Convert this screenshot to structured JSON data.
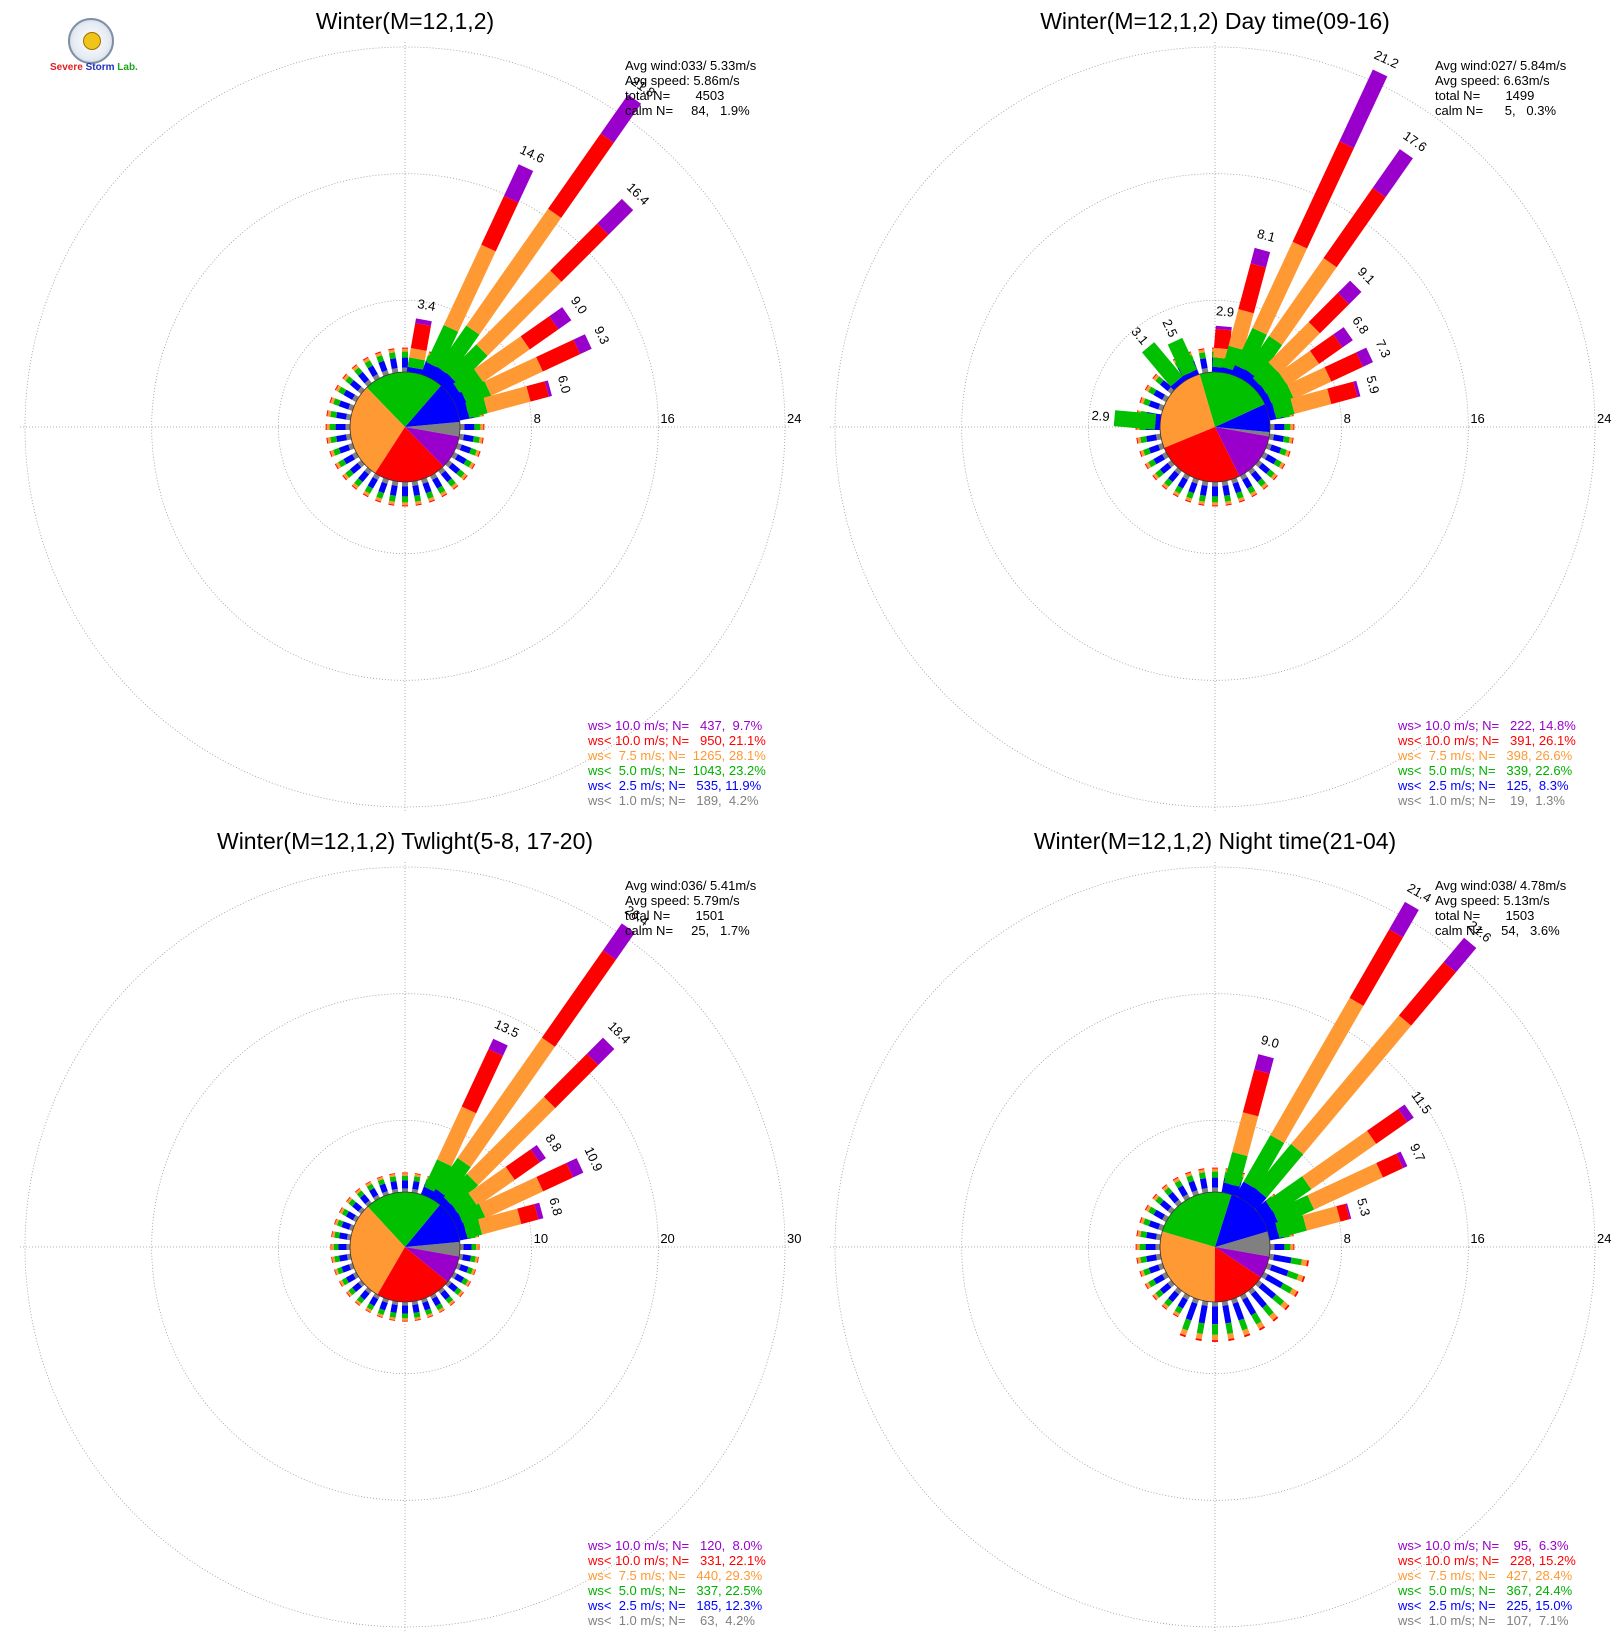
{
  "logo": {
    "word1": "Severe",
    "word2": "Storm",
    "word3": "Lab."
  },
  "colors": {
    "bins": [
      "#808080",
      "#0000ff",
      "#00c000",
      "#ff9933",
      "#ff0000",
      "#9900cc"
    ],
    "grid": "#999999"
  },
  "chart_data": [
    {
      "type": "windrose",
      "title": "Winter(M=12,1,2)",
      "rings": [
        8,
        16,
        24
      ],
      "ring_labels": [
        "8",
        "16",
        "24"
      ],
      "stats": [
        "Avg wind:033/ 5.33m/s",
        "Avg speed: 5.86m/s",
        "total N=       4503",
        "calm N=     84,   1.9%"
      ],
      "legend": [
        "ws> 10.0 m/s; N=   437,  9.7%",
        "ws< 10.0 m/s; N=   950, 21.1%",
        "ws<  7.5 m/s; N=  1265, 28.1%",
        "ws<  5.0 m/s; N=  1043, 23.2%",
        "ws<  2.5 m/s; N=   535, 11.9%",
        "ws<  1.0 m/s; N=   189,  4.2%"
      ],
      "pie": [
        4.2,
        11.9,
        23.2,
        28.1,
        21.1,
        9.7
      ],
      "labeled_petals": [
        {
          "dir": 10,
          "segs": [
            0,
            0.3,
            0.6,
            0.6,
            1.6,
            0.3
          ],
          "label": "3.4"
        },
        {
          "dir": 25,
          "segs": [
            0,
            0.8,
            2.6,
            5.6,
            3.4,
            2.2
          ],
          "label": "14.6"
        },
        {
          "dir": 35,
          "segs": [
            0,
            0.8,
            3.2,
            9.0,
            5.8,
            3.0
          ],
          "label": "21.8"
        },
        {
          "dir": 45,
          "segs": [
            0,
            0.8,
            2.6,
            6.6,
            4.2,
            2.2
          ],
          "label": "16.4"
        },
        {
          "dir": 55,
          "segs": [
            0,
            0.6,
            1.6,
            3.6,
            2.2,
            1.0
          ],
          "label": "9.0"
        },
        {
          "dir": 65,
          "segs": [
            0,
            0.7,
            1.6,
            3.6,
            2.6,
            0.8
          ],
          "label": "9.3"
        },
        {
          "dir": 75,
          "segs": [
            0,
            0.6,
            1.2,
            2.8,
            1.2,
            0.2
          ],
          "label": "6.0"
        }
      ]
    },
    {
      "type": "windrose",
      "title": "Winter(M=12,1,2) Day time(09-16)",
      "rings": [
        8,
        16,
        24
      ],
      "ring_labels": [
        "8",
        "16",
        "24"
      ],
      "stats": [
        "Avg wind:027/ 5.84m/s",
        "Avg speed: 6.63m/s",
        "total N=       1499",
        "calm N=      5,   0.3%"
      ],
      "legend": [
        "ws> 10.0 m/s; N=   222, 14.8%",
        "ws< 10.0 m/s; N=   391, 26.1%",
        "ws<  7.5 m/s; N=   398, 26.6%",
        "ws<  5.0 m/s; N=   339, 22.6%",
        "ws<  2.5 m/s; N=   125,  8.3%",
        "ws<  1.0 m/s; N=    19,  1.3%"
      ],
      "pie": [
        1.3,
        8.3,
        22.6,
        26.6,
        26.1,
        14.8
      ],
      "labeled_petals": [
        {
          "dir": 275,
          "segs": [
            0,
            0.3,
            2.6,
            0,
            0,
            0
          ],
          "label": "2.9"
        },
        {
          "dir": 320,
          "segs": [
            0,
            0.3,
            2.8,
            0,
            0,
            0
          ],
          "label": "3.1"
        },
        {
          "dir": 335,
          "segs": [
            0,
            0.3,
            2.2,
            0,
            0,
            0
          ],
          "label": "2.5"
        },
        {
          "dir": 5,
          "segs": [
            0,
            0.3,
            0.6,
            0.6,
            1.2,
            0.2
          ],
          "label": "2.9"
        },
        {
          "dir": 15,
          "segs": [
            0,
            0.3,
            1.4,
            2.4,
            3.0,
            1.0
          ],
          "label": "8.1"
        },
        {
          "dir": 25,
          "segs": [
            0,
            0.6,
            2.6,
            6.0,
            7.0,
            5.0
          ],
          "label": "21.2"
        },
        {
          "dir": 35,
          "segs": [
            0,
            0.6,
            2.6,
            6.0,
            5.4,
            3.0
          ],
          "label": "17.6"
        },
        {
          "dir": 45,
          "segs": [
            0,
            0.4,
            1.4,
            3.6,
            2.6,
            1.1
          ],
          "label": "9.1"
        },
        {
          "dir": 55,
          "segs": [
            0,
            0.4,
            1.4,
            2.4,
            1.8,
            0.8
          ],
          "label": "6.8"
        },
        {
          "dir": 65,
          "segs": [
            0,
            0.4,
            1.4,
            2.6,
            2.2,
            0.7
          ],
          "label": "7.3"
        },
        {
          "dir": 75,
          "segs": [
            0,
            0.4,
            1.2,
            2.4,
            1.7,
            0.2
          ],
          "label": "5.9"
        }
      ]
    },
    {
      "type": "windrose",
      "title": "Winter(M=12,1,2) Twlight(5-8, 17-20)",
      "rings": [
        10,
        20,
        30
      ],
      "ring_labels": [
        "10",
        "20",
        "30"
      ],
      "stats": [
        "Avg wind:036/ 5.41m/s",
        "Avg speed: 5.79m/s",
        "total N=       1501",
        "calm N=     25,   1.7%"
      ],
      "legend": [
        "ws> 10.0 m/s; N=   120,  8.0%",
        "ws< 10.0 m/s; N=   331, 22.1%",
        "ws<  7.5 m/s; N=   440, 29.3%",
        "ws<  5.0 m/s; N=   337, 22.5%",
        "ws<  2.5 m/s; N=   185, 12.3%",
        "ws<  1.0 m/s; N=    63,  4.2%"
      ],
      "pie": [
        4.2,
        12.3,
        22.5,
        29.3,
        22.1,
        8.0
      ],
      "labeled_petals": [
        {
          "dir": 25,
          "segs": [
            0,
            0.6,
            2.4,
            4.6,
            5.0,
            0.9
          ],
          "label": "13.5"
        },
        {
          "dir": 35,
          "segs": [
            0,
            0.8,
            3.0,
            11.6,
            8.4,
            2.6
          ],
          "label": "26.4"
        },
        {
          "dir": 45,
          "segs": [
            0,
            0.6,
            2.6,
            8.6,
            4.8,
            1.8
          ],
          "label": "18.4"
        },
        {
          "dir": 55,
          "segs": [
            0,
            0.6,
            1.6,
            3.6,
            2.4,
            0.6
          ],
          "label": "8.8"
        },
        {
          "dir": 65,
          "segs": [
            0,
            0.6,
            1.8,
            5.0,
            2.6,
            0.9
          ],
          "label": "10.9"
        },
        {
          "dir": 75,
          "segs": [
            0,
            0.6,
            1.2,
            3.2,
            1.4,
            0.4
          ],
          "label": "6.8"
        }
      ]
    },
    {
      "type": "windrose",
      "title": "Winter(M=12,1,2) Night time(21-04)",
      "rings": [
        8,
        16,
        24
      ],
      "ring_labels": [
        "8",
        "16",
        "24"
      ],
      "stats": [
        "Avg wind:038/ 4.78m/s",
        "Avg speed: 5.13m/s",
        "total N=       1503",
        "calm N=     54,   3.6%"
      ],
      "legend": [
        "ws> 10.0 m/s; N=    95,  6.3%",
        "ws< 10.0 m/s; N=   228, 15.2%",
        "ws<  7.5 m/s; N=   427, 28.4%",
        "ws<  5.0 m/s; N=   367, 24.4%",
        "ws<  2.5 m/s; N=   225, 15.0%",
        "ws<  1.0 m/s; N=   107,  7.1%"
      ],
      "pie": [
        7.1,
        15.0,
        24.4,
        28.4,
        15.2,
        6.3
      ],
      "labeled_petals": [
        {
          "dir": 15,
          "segs": [
            0,
            0.6,
            2.0,
            2.6,
            2.8,
            1.0
          ],
          "label": "9.0"
        },
        {
          "dir": 30,
          "segs": [
            0,
            1.0,
            3.4,
            10.0,
            5.0,
            2.0
          ],
          "label": "21.4"
        },
        {
          "dir": 40,
          "segs": [
            0,
            1.0,
            3.6,
            10.6,
            4.4,
            2.0
          ],
          "label": "21.6"
        },
        {
          "dir": 55,
          "segs": [
            0,
            0.8,
            2.8,
            5.0,
            2.4,
            0.5
          ],
          "label": "11.5"
        },
        {
          "dir": 65,
          "segs": [
            0,
            0.8,
            2.4,
            4.8,
            1.4,
            0.3
          ],
          "label": "9.7"
        },
        {
          "dir": 75,
          "segs": [
            0,
            0.6,
            1.8,
            2.2,
            0.6,
            0.1
          ],
          "label": "5.3"
        }
      ]
    }
  ]
}
